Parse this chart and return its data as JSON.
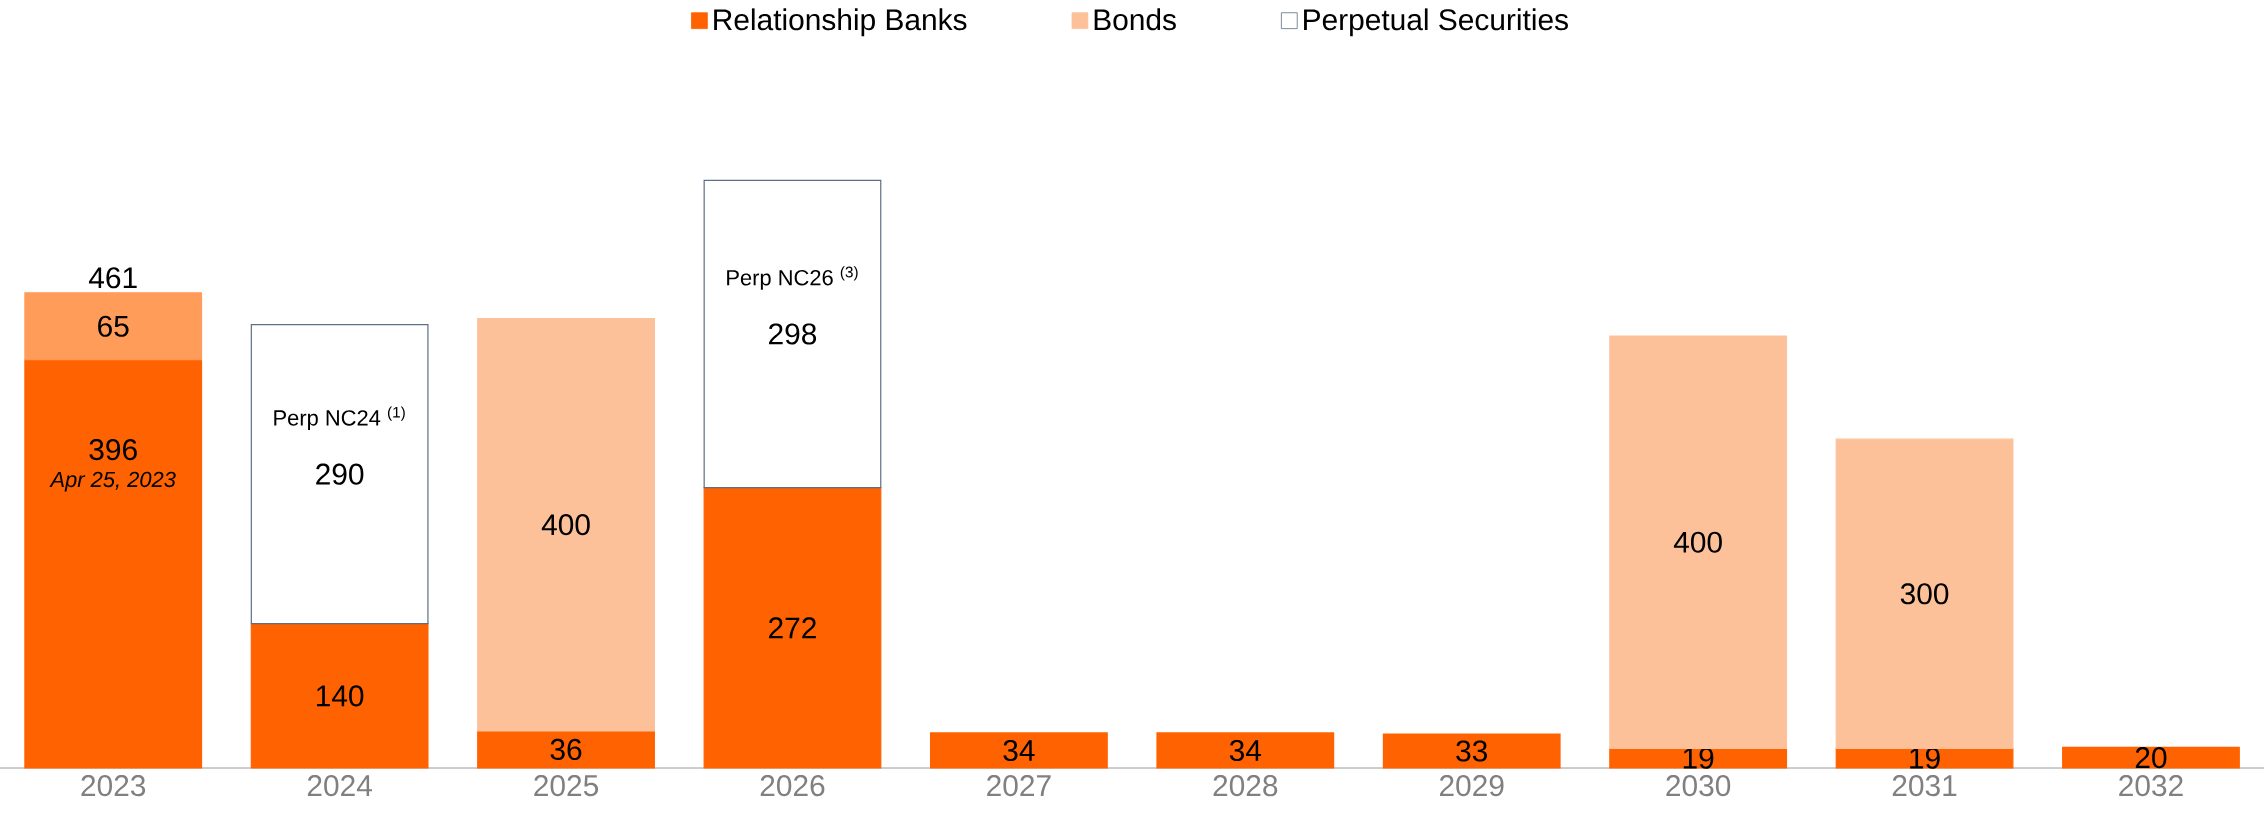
{
  "chart_data": {
    "type": "bar",
    "stacked": true,
    "data_labels": true,
    "legend": "top",
    "categories": [
      "2023",
      "2024",
      "2025",
      "2026",
      "2027",
      "2028",
      "2029",
      "2030",
      "2031",
      "2032"
    ],
    "series": [
      {
        "name": "Relationship Banks",
        "color": "#ff6200",
        "values": [
          396,
          140,
          36,
          272,
          34,
          34,
          33,
          19,
          19,
          20
        ]
      },
      {
        "color": "#ff9c5a",
        "values": [
          65,
          null,
          null,
          null,
          null,
          null,
          null,
          null,
          null,
          null
        ]
      },
      {
        "name": "Bonds",
        "color": "#fdc19a",
        "values": [
          null,
          null,
          400,
          null,
          null,
          null,
          null,
          400,
          300,
          null
        ]
      },
      {
        "name": "Perpetual Securities",
        "color": "#ffffff",
        "values": [
          null,
          290,
          null,
          298,
          null,
          null,
          null,
          null,
          null,
          null
        ]
      }
    ],
    "totals": [
      "461",
      null,
      null,
      null,
      null,
      null,
      null,
      null,
      null,
      null
    ],
    "annotations": [
      "Apr 25, 2023",
      "Perp NC24 $^{(1)}$",
      "Perp NC26 $^{(3)}$"
    ]
  }
}
